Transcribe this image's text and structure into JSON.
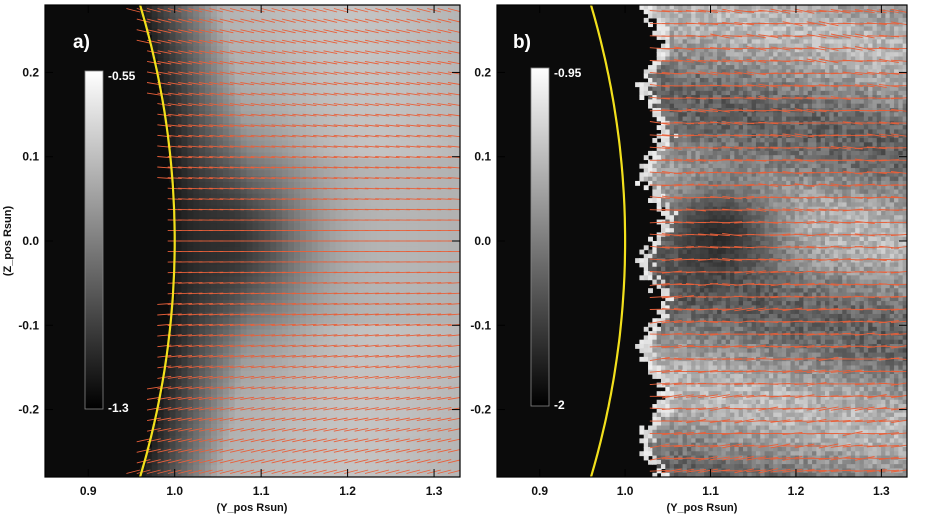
{
  "chart_data": [
    {
      "type": "heatmap",
      "panel_label": "a)",
      "xlabel": "(Y_pos Rsun)",
      "ylabel": "(Z_pos Rsun)",
      "xlim": [
        0.85,
        1.33
      ],
      "ylim": [
        -0.28,
        0.28
      ],
      "xticks": [
        0.9,
        1.0,
        1.1,
        1.2,
        1.3
      ],
      "xtick_labels": [
        "0.9",
        "1.0",
        "1.1",
        "1.2",
        "1.3"
      ],
      "yticks": [
        0.2,
        0.1,
        0.0,
        -0.1,
        -0.2
      ],
      "ytick_labels": [
        "0.2",
        "0.1",
        "0.0",
        "-0.1",
        "-0.2"
      ],
      "colorbar": {
        "max_label": "-0.55",
        "min_label": "-1.3",
        "min": -1.3,
        "max": -0.55
      },
      "limb_radius": 1.0,
      "limb_color": "#f2e01c",
      "vector_color": "#e8603a",
      "field": "smooth"
    },
    {
      "type": "heatmap",
      "panel_label": "b)",
      "xlabel": "(Y_pos Rsun)",
      "ylabel": "",
      "xlim": [
        0.85,
        1.33
      ],
      "ylim": [
        -0.28,
        0.28
      ],
      "xticks": [
        0.9,
        1.0,
        1.1,
        1.2,
        1.3
      ],
      "xtick_labels": [
        "0.9",
        "1.0",
        "1.1",
        "1.2",
        "1.3"
      ],
      "yticks": [
        0.2,
        0.1,
        0.0,
        -0.1,
        -0.2
      ],
      "ytick_labels": [
        "0.2",
        "0.1",
        "0.0",
        "-0.1",
        "-0.2"
      ],
      "colorbar": {
        "max_label": "-0.95",
        "min_label": "-2",
        "min": -2,
        "max": -0.95
      },
      "limb_radius": 1.0,
      "limb_color": "#f2e01c",
      "vector_color": "#e8603a",
      "field": "noisy"
    }
  ]
}
